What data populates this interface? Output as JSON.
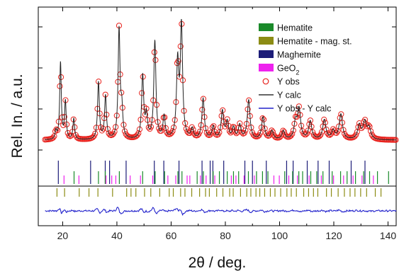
{
  "chart_data": {
    "type": "line",
    "title": "",
    "xlabel": "2θ / deg.",
    "ylabel": "Rel. In. / a.u.",
    "xlim": [
      11,
      143
    ],
    "xticks": [
      20,
      40,
      60,
      80,
      100,
      120,
      140
    ],
    "y_ticks_labeled": false,
    "grid": false,
    "legend_position": "top-right",
    "legend": [
      {
        "label": "Hematite",
        "marker": "bar",
        "color": "#1a8a2a"
      },
      {
        "label": "Hematite - mag. st.",
        "marker": "bar",
        "color": "#8c8c14"
      },
      {
        "label": "Maghemite",
        "marker": "bar",
        "color": "#1c1c78"
      },
      {
        "label": "GeO2",
        "marker": "bar",
        "color": "#ee22ee",
        "label_base": "GeO",
        "label_sub": "2"
      },
      {
        "label": "Y obs",
        "marker": "circle",
        "color": "#e8231e"
      },
      {
        "label": "Y calc",
        "marker": "line",
        "color": "#333333"
      },
      {
        "label": "Y obs - Y calc",
        "marker": "line",
        "color": "#2222cc"
      }
    ],
    "background_level": 0.07,
    "peaks": [
      {
        "x": 17.5,
        "h": 0.06
      },
      {
        "x": 19.2,
        "h": 0.55
      },
      {
        "x": 21.0,
        "h": 0.27
      },
      {
        "x": 24.1,
        "h": 0.15
      },
      {
        "x": 33.2,
        "h": 0.41
      },
      {
        "x": 35.8,
        "h": 0.31
      },
      {
        "x": 40.8,
        "h": 0.78
      },
      {
        "x": 41.8,
        "h": 0.2
      },
      {
        "x": 49.5,
        "h": 0.45
      },
      {
        "x": 50.9,
        "h": 0.16
      },
      {
        "x": 54.0,
        "h": 0.7
      },
      {
        "x": 57.4,
        "h": 0.16
      },
      {
        "x": 62.4,
        "h": 0.53
      },
      {
        "x": 63.8,
        "h": 0.8
      },
      {
        "x": 67.8,
        "h": 0.07
      },
      {
        "x": 71.8,
        "h": 0.29
      },
      {
        "x": 75.5,
        "h": 0.09
      },
      {
        "x": 78.9,
        "h": 0.2
      },
      {
        "x": 80.7,
        "h": 0.12
      },
      {
        "x": 83.0,
        "h": 0.08
      },
      {
        "x": 85.3,
        "h": 0.1
      },
      {
        "x": 88.6,
        "h": 0.28
      },
      {
        "x": 93.9,
        "h": 0.16
      },
      {
        "x": 97.2,
        "h": 0.06
      },
      {
        "x": 101.4,
        "h": 0.06
      },
      {
        "x": 105.9,
        "h": 0.12
      },
      {
        "x": 107.2,
        "h": 0.21
      },
      {
        "x": 111.3,
        "h": 0.13
      },
      {
        "x": 116.5,
        "h": 0.14
      },
      {
        "x": 119.8,
        "h": 0.06
      },
      {
        "x": 122.6,
        "h": 0.18
      },
      {
        "x": 129.4,
        "h": 0.1
      },
      {
        "x": 131.4,
        "h": 0.12
      },
      {
        "x": 133.0,
        "h": 0.08
      }
    ],
    "reflection_markers": {
      "Maghemite": [
        18.4,
        30.3,
        35.7,
        37.3,
        43.4,
        53.8,
        57.3,
        62.9,
        71.4,
        74.4,
        75.4,
        79.4,
        87.2,
        90.0,
        95.1,
        102.6,
        105.0,
        110.2,
        114.2,
        118.3,
        126.4,
        131.5
      ],
      "Hematite": [
        24.2,
        33.2,
        35.7,
        40.9,
        49.5,
        54.1,
        57.6,
        62.5,
        64.0,
        69.6,
        71.9,
        75.5,
        77.8,
        80.7,
        83.0,
        84.9,
        88.5,
        91.5,
        93.7,
        95.7,
        101.9,
        104.8,
        107.1,
        108.5,
        111.5,
        113.7,
        116.0,
        119.4,
        122.5,
        124.9,
        128.0,
        131.0,
        133.2,
        136.1,
        140.2
      ],
      "GeO2": [
        20.5,
        26.0,
        36.0,
        38.1,
        39.6,
        44.9,
        48.7,
        53.2,
        58.8,
        61.7,
        65.9,
        66.9,
        70.8,
        72.9,
        76.1,
        82.2,
        83.9,
        86.9,
        90.7,
        97.9,
        99.9,
        103.4,
        106.6,
        110.9,
        115.4,
        119.9,
        123.6,
        127.1,
        130.4,
        134.6
      ],
      "Hematite - mag. st.": [
        17.9,
        20.7,
        26.1,
        29.7,
        33.0,
        38.4,
        43.6,
        45.2,
        47.0,
        50.2,
        52.5,
        55.8,
        59.3,
        60.8,
        63.5,
        65.1,
        67.6,
        70.5,
        72.7,
        74.1,
        76.8,
        79.1,
        81.6,
        82.9,
        85.6,
        87.9,
        89.4,
        91.3,
        92.7,
        94.5,
        96.6,
        98.3,
        100.4,
        102.7,
        104.3,
        106.2,
        108.9,
        110.7,
        112.5,
        114.1,
        117.3,
        119.1,
        121.6,
        123.9,
        126.0,
        127.8,
        129.9,
        132.1,
        135.3,
        137.4
      ]
    }
  }
}
